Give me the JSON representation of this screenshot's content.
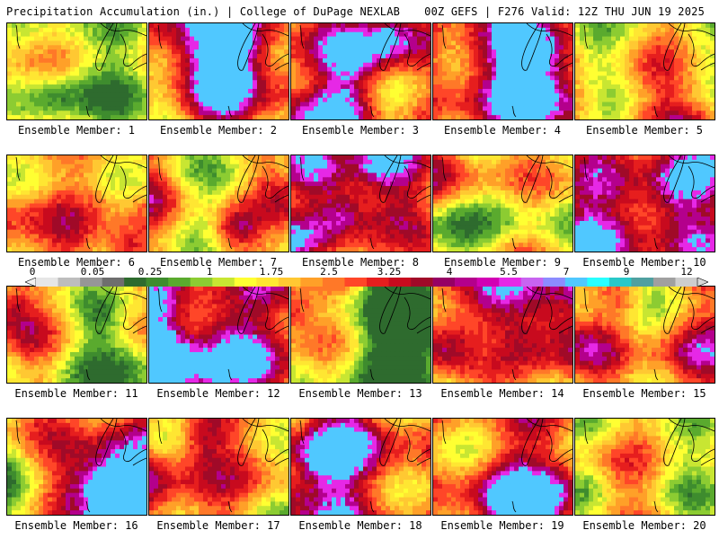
{
  "header": {
    "left": "Precipitation Accumulation (in.) | College of DuPage NEXLAB",
    "right": "00Z GEFS | F276 Valid: 12Z THU JUN 19 2025"
  },
  "panels": [
    {
      "label": "Ensemble Member: 1",
      "seed": 11
    },
    {
      "label": "Ensemble Member: 2",
      "seed": 23
    },
    {
      "label": "Ensemble Member: 3",
      "seed": 37
    },
    {
      "label": "Ensemble Member: 4",
      "seed": 41
    },
    {
      "label": "Ensemble Member: 5",
      "seed": 53
    },
    {
      "label": "Ensemble Member: 6",
      "seed": 67
    },
    {
      "label": "Ensemble Member: 7",
      "seed": 71
    },
    {
      "label": "Ensemble Member: 8",
      "seed": 83
    },
    {
      "label": "Ensemble Member: 9",
      "seed": 97
    },
    {
      "label": "Ensemble Member: 10",
      "seed": 101
    },
    {
      "label": "Ensemble Member: 11",
      "seed": 113
    },
    {
      "label": "Ensemble Member: 12",
      "seed": 127
    },
    {
      "label": "Ensemble Member: 13",
      "seed": 131
    },
    {
      "label": "Ensemble Member: 14",
      "seed": 149
    },
    {
      "label": "Ensemble Member: 15",
      "seed": 151
    },
    {
      "label": "Ensemble Member: 16",
      "seed": 163
    },
    {
      "label": "Ensemble Member: 17",
      "seed": 173
    },
    {
      "label": "Ensemble Member: 18",
      "seed": 181
    },
    {
      "label": "Ensemble Member: 19",
      "seed": 191
    },
    {
      "label": "Ensemble Member: 20",
      "seed": 199
    }
  ],
  "colorbar": {
    "labels": [
      "0",
      "0.05",
      "0.25",
      "1",
      "1.75",
      "2.5",
      "3.25",
      "4",
      "5.5",
      "7",
      "9",
      "12"
    ],
    "colors": [
      "#e6e6e6",
      "#bdbdbd",
      "#969696",
      "#6e6e6e",
      "#2e6b2e",
      "#3e8c2e",
      "#5aaa2e",
      "#8ccc32",
      "#c8e632",
      "#ffff32",
      "#ffe632",
      "#ffc832",
      "#ffa028",
      "#ff7828",
      "#ff4628",
      "#e61e1e",
      "#c80a1e",
      "#a00a28",
      "#960064",
      "#b4008c",
      "#d200b4",
      "#e628e6",
      "#c864f0",
      "#8c8cff",
      "#50c8ff",
      "#28ffff",
      "#28c8c8",
      "#50a0a0",
      "#a0a0a0",
      "#cdcdcd"
    ]
  }
}
